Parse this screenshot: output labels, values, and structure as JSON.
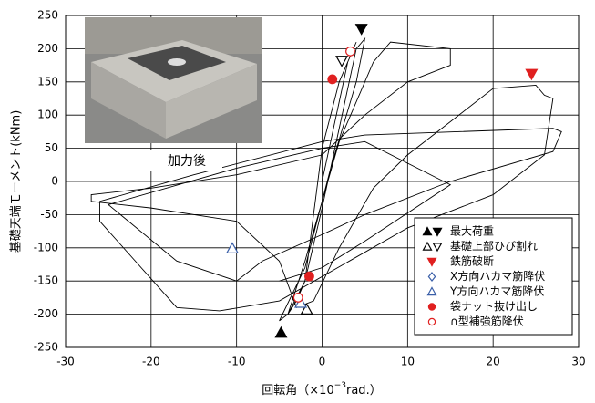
{
  "chart_data": {
    "type": "line",
    "xlabel": [
      "回転角（×10",
      "−3",
      "rad.）"
    ],
    "ylabel": "基礎天端モーメント(kNm)",
    "annotation": "加力後",
    "xlim": [
      -30,
      30
    ],
    "xticks": [
      -30,
      -20,
      -10,
      0,
      10,
      20,
      30
    ],
    "ylim": [
      -250,
      250
    ],
    "yticks": [
      -250,
      -200,
      -150,
      -100,
      -50,
      0,
      50,
      100,
      150,
      200,
      250
    ],
    "grid": true,
    "legend": "lower right",
    "curve": {
      "color": "#000000",
      "x": [
        0,
        1,
        2,
        3,
        4,
        2,
        0,
        -1,
        -2,
        -3,
        -4,
        -2,
        0,
        2,
        4,
        5,
        4,
        1,
        -2,
        -5,
        -4,
        -2,
        2,
        6,
        8,
        15,
        15,
        10,
        5,
        0,
        -10,
        -20,
        -27,
        -27,
        -20,
        -10,
        -5,
        -3,
        -1,
        2,
        6,
        10,
        20,
        25,
        26,
        27,
        26,
        20,
        10,
        -5,
        -12,
        -17,
        -26,
        -26,
        -15,
        0,
        5,
        27,
        28,
        27,
        15,
        5,
        0,
        -7,
        -10,
        -17,
        -25,
        -10,
        0,
        5,
        15,
        5,
        0,
        -5
      ],
      "y": [
        0,
        60,
        120,
        180,
        210,
        150,
        50,
        -50,
        -150,
        -180,
        -200,
        -150,
        -40,
        80,
        200,
        215,
        150,
        20,
        -130,
        -210,
        -200,
        -120,
        60,
        180,
        210,
        200,
        175,
        150,
        100,
        40,
        10,
        -10,
        -20,
        -30,
        -40,
        -60,
        -120,
        -190,
        -180,
        -100,
        -10,
        40,
        140,
        145,
        130,
        125,
        40,
        -20,
        -70,
        -180,
        -195,
        -190,
        -60,
        -30,
        10,
        60,
        70,
        80,
        75,
        45,
        0,
        -50,
        -80,
        -120,
        -150,
        -120,
        -35,
        20,
        50,
        60,
        -5,
        -90,
        -130,
        -150
      ]
    },
    "series": [
      {
        "name": "最大荷重",
        "color": "#000000",
        "filled": true,
        "marker": [
          "up",
          "down"
        ],
        "x": [
          -4.8,
          4.6
        ],
        "y": [
          -228,
          230
        ]
      },
      {
        "name": "基礎上部ひび割れ",
        "color": "#000000",
        "filled": false,
        "marker": [
          "up",
          "down"
        ],
        "x": [
          -1.8,
          2.3
        ],
        "y": [
          -193,
          182
        ]
      },
      {
        "name": "鉄筋破断",
        "color": "#e02020",
        "filled": true,
        "marker": [
          "down"
        ],
        "x": [
          24.5
        ],
        "y": [
          162
        ]
      },
      {
        "name": "X方向ハカマ筋降伏",
        "color": "#3a5fa8",
        "filled": false,
        "marker": [
          "diamond"
        ],
        "x": [],
        "y": []
      },
      {
        "name": "Y方向ハカマ筋降伏",
        "color": "#3a5fa8",
        "filled": false,
        "marker": [
          "up",
          "up"
        ],
        "x": [
          -10.5,
          -2.5
        ],
        "y": [
          -101,
          -183
        ]
      },
      {
        "name": "袋ナット抜け出し",
        "color": "#e02020",
        "filled": true,
        "marker": [
          "circle",
          "circle"
        ],
        "x": [
          1.2,
          -1.5
        ],
        "y": [
          154,
          -143
        ]
      },
      {
        "name": "∩型補強筋降伏",
        "color": "#e02020",
        "filled": false,
        "marker": [
          "circle",
          "circle"
        ],
        "x": [
          3.3,
          -2.8
        ],
        "y": [
          196,
          -175
        ]
      }
    ]
  }
}
